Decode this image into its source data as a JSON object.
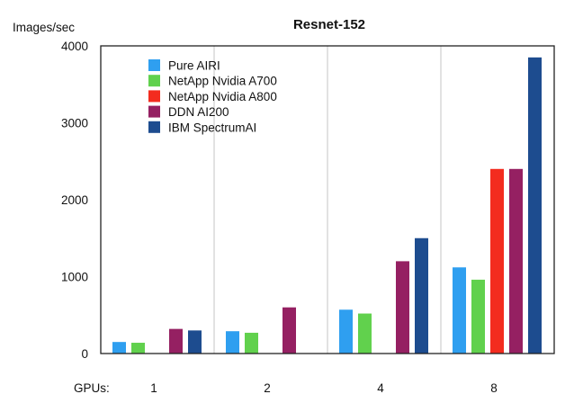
{
  "chart_data": {
    "type": "bar",
    "title": "Resnet-152",
    "ylabel": "Images/sec",
    "xlabel": "",
    "x_prefix": "GPUs:",
    "categories": [
      "1",
      "2",
      "4",
      "8"
    ],
    "ylim": [
      0,
      4000
    ],
    "yticks": [
      "0",
      "1000",
      "2000",
      "3000",
      "4000"
    ],
    "grid": "vertical",
    "legend_position": "top-left",
    "series": [
      {
        "name": "Pure AIRI",
        "color": "#2f9ff0",
        "values": [
          150,
          290,
          570,
          1120
        ]
      },
      {
        "name": "NetApp Nvidia A700",
        "color": "#61d14d",
        "values": [
          140,
          270,
          520,
          960
        ]
      },
      {
        "name": "NetApp Nvidia A800",
        "color": "#f32c1f",
        "values": [
          null,
          null,
          null,
          2400
        ]
      },
      {
        "name": "DDN AI200",
        "color": "#952062",
        "values": [
          320,
          600,
          1200,
          2400
        ]
      },
      {
        "name": "IBM SpectrumAI",
        "color": "#1d4c8f",
        "values": [
          300,
          null,
          1500,
          3850
        ]
      }
    ]
  }
}
